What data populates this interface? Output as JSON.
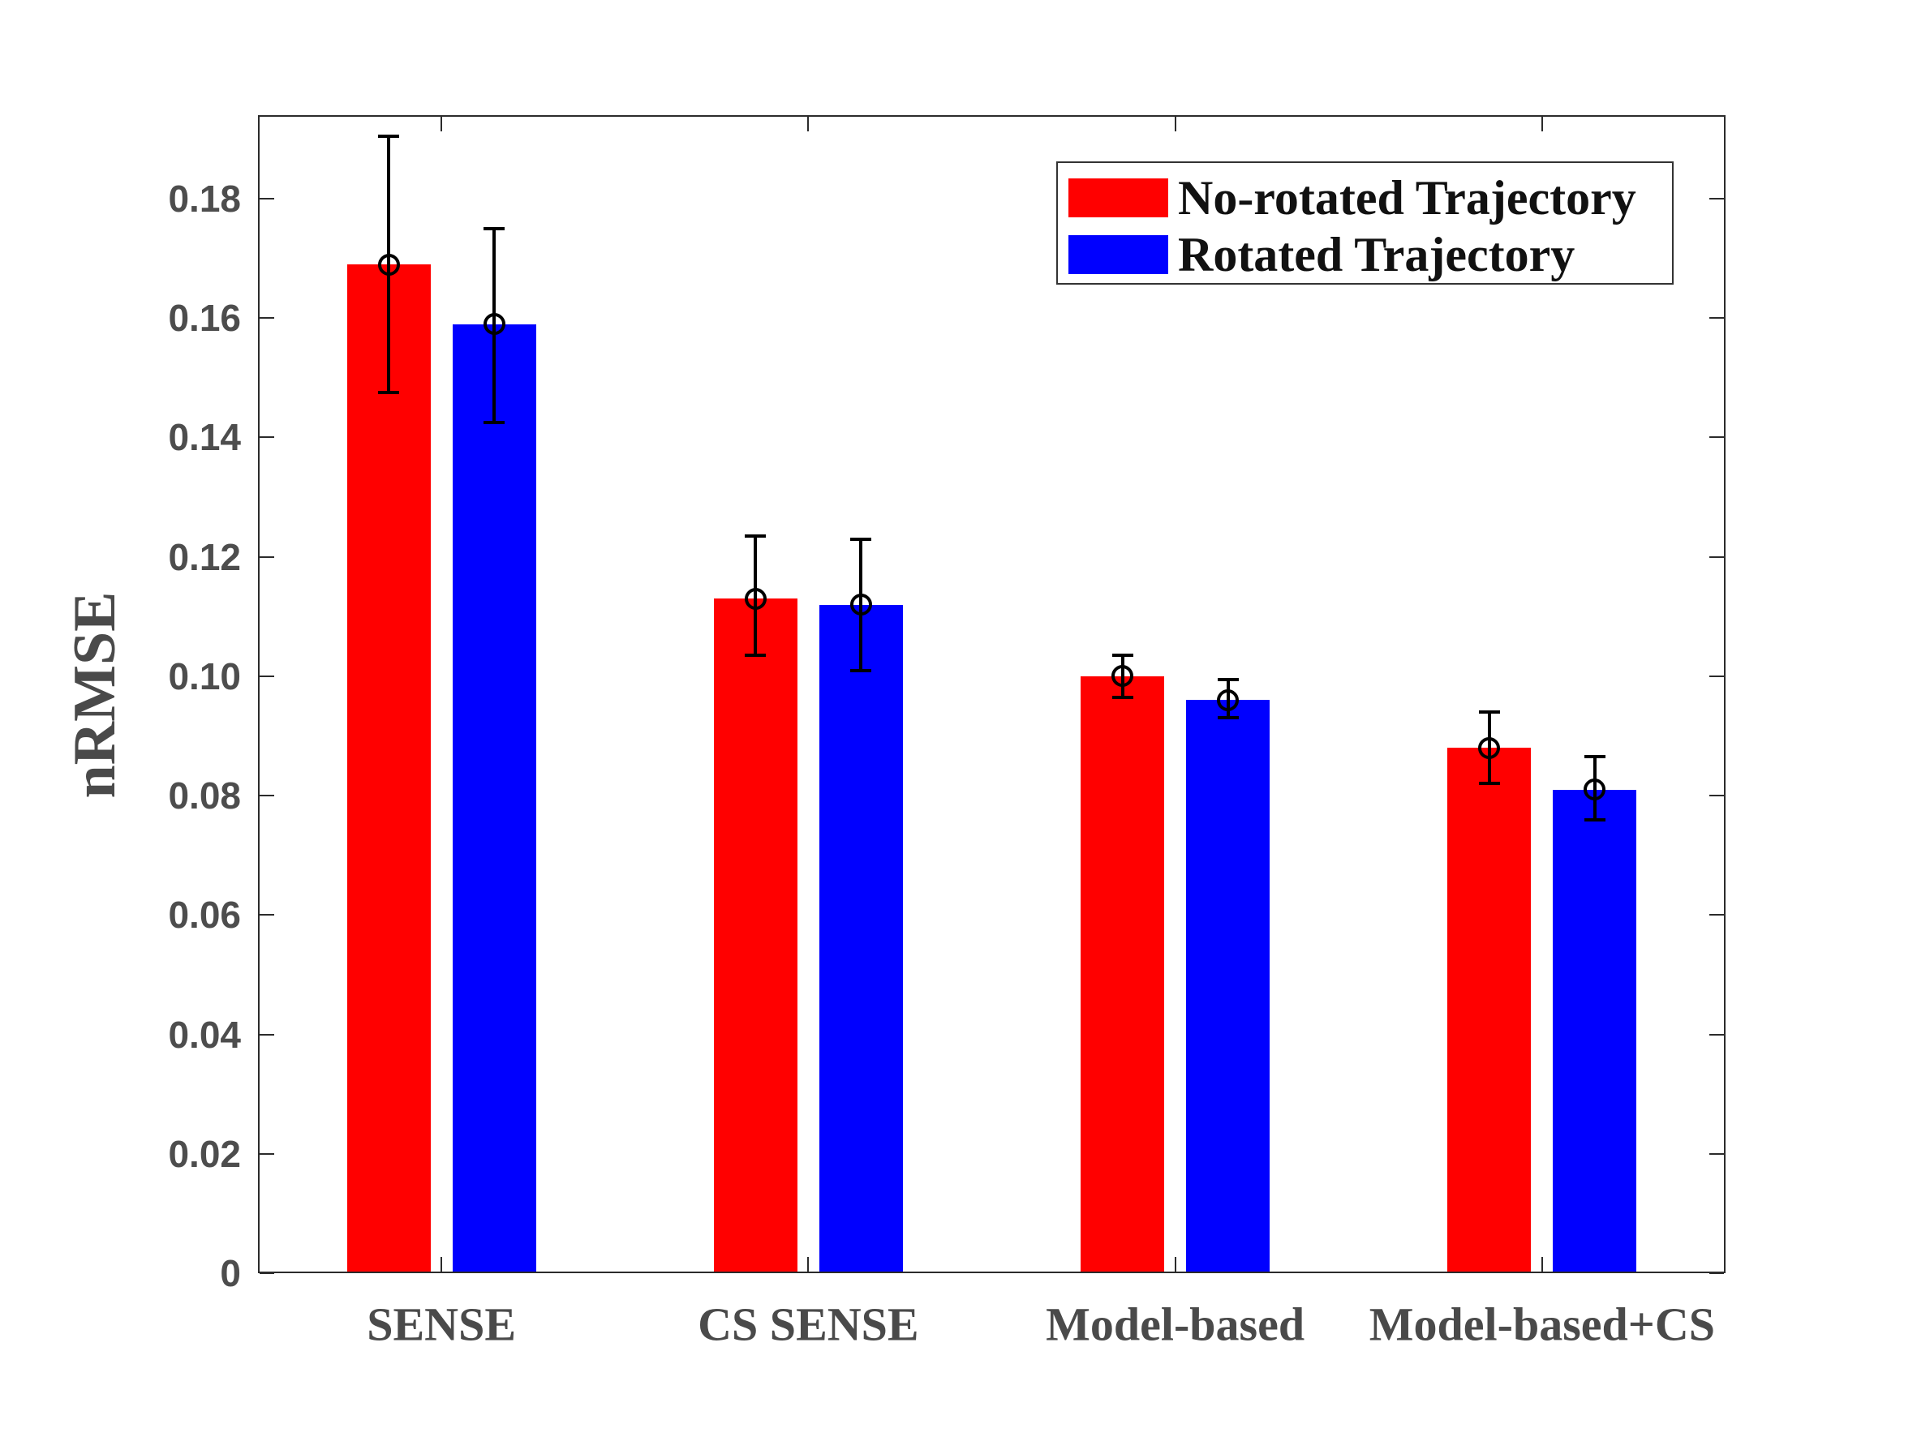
{
  "figure": {
    "background": "#ffffff"
  },
  "chart_data": {
    "type": "bar",
    "title": "",
    "xlabel": "",
    "ylabel": "nRMSE",
    "categories": [
      "SENSE",
      "CS SENSE",
      "Model-based",
      "Model-based+CS"
    ],
    "series": [
      {
        "name": "No-rotated Trajectory",
        "color": "#ff0000",
        "values": [
          0.169,
          0.113,
          0.1,
          0.088
        ],
        "error_upper": [
          0.1905,
          0.1235,
          0.1035,
          0.094
        ],
        "error_lower": [
          0.1475,
          0.1035,
          0.0965,
          0.082
        ]
      },
      {
        "name": "Rotated Trajectory",
        "color": "#0000ff",
        "values": [
          0.159,
          0.112,
          0.096,
          0.081
        ],
        "error_upper": [
          0.175,
          0.123,
          0.0995,
          0.0865
        ],
        "error_lower": [
          0.1425,
          0.101,
          0.093,
          0.076
        ]
      }
    ],
    "ylim": [
      0,
      0.194
    ],
    "yticks": [
      0,
      0.02,
      0.04,
      0.06,
      0.08,
      0.1,
      0.12,
      0.14,
      0.16,
      0.18
    ],
    "ytick_labels": [
      "0",
      "0.02",
      "0.04",
      "0.06",
      "0.08",
      "0.10",
      "0.12",
      "0.14",
      "0.16",
      "0.18"
    ],
    "grid": false,
    "error_marker": "open-circle",
    "error_bar_color": "#000000",
    "legend_position": "top-right",
    "legend_border_color": "#333333",
    "axis_color": "#2b2b2b",
    "tick_label_color": "#4d4d4d",
    "category_label_color": "#4a4a4a",
    "legend_text_color": "#111111",
    "tick_direction": "in",
    "box": true
  }
}
